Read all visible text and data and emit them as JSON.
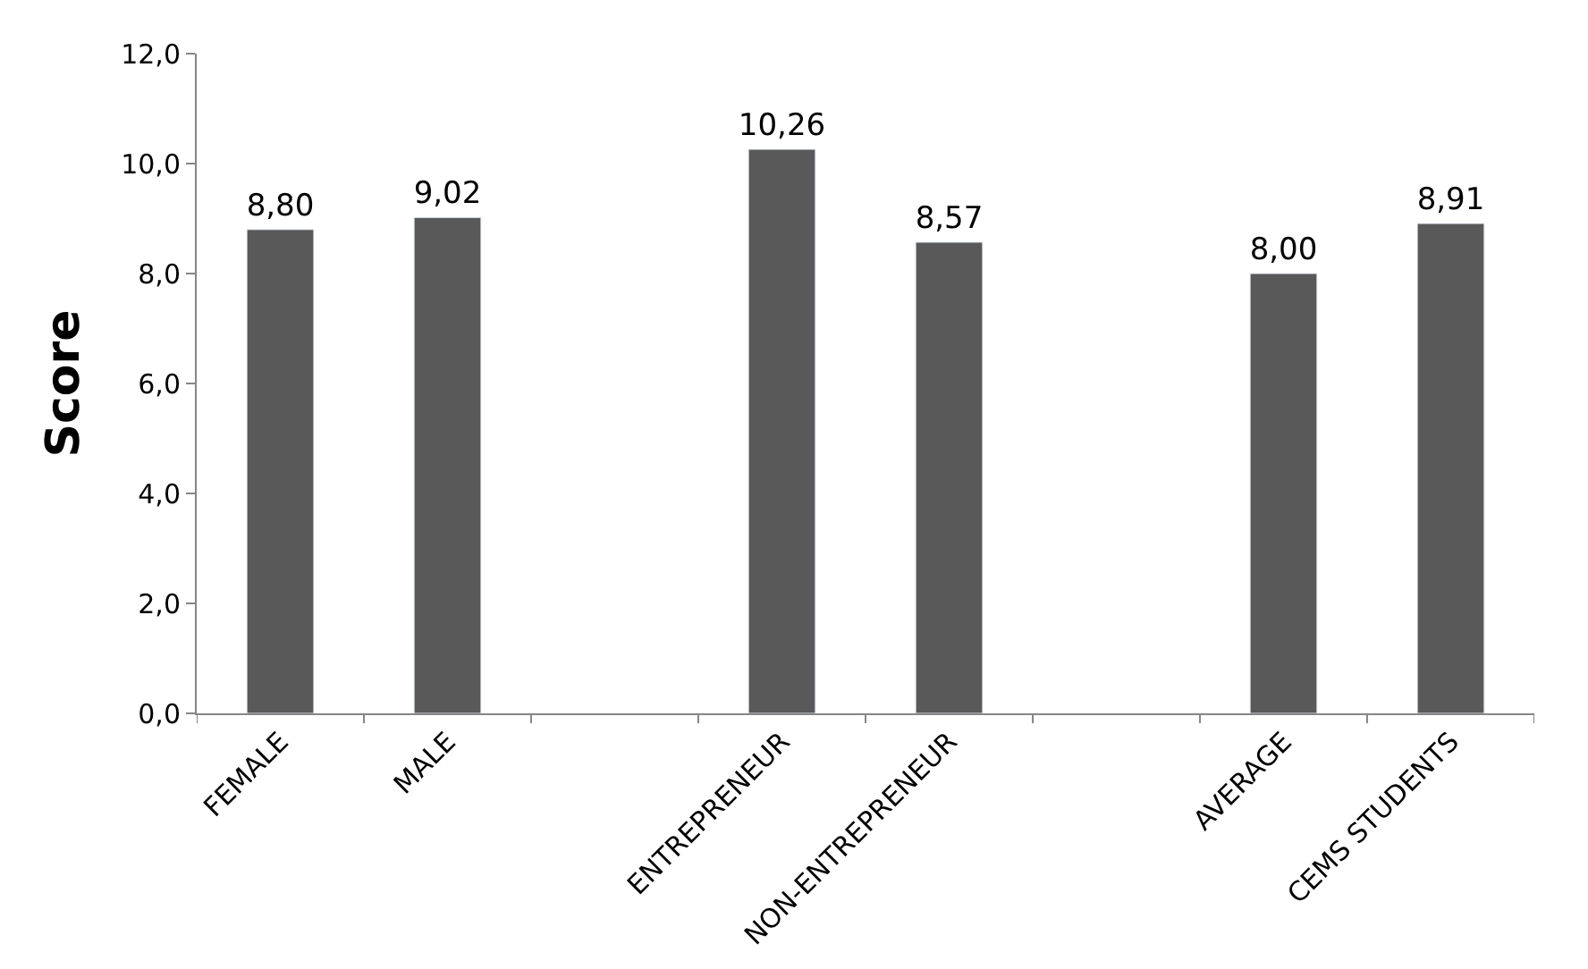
{
  "chart_data": {
    "type": "bar",
    "ylabel": "Score",
    "categories": [
      "FEMALE",
      "MALE",
      null,
      "ENTREPRENEUR",
      "NON-ENTREPRENEUR",
      null,
      "AVERAGE",
      "CEMS STUDENTS"
    ],
    "values": [
      8.8,
      9.02,
      null,
      10.26,
      8.57,
      null,
      8.0,
      8.91
    ],
    "value_labels": [
      "8,80",
      "9,02",
      null,
      "10,26",
      "8,57",
      null,
      "8,00",
      "8,91"
    ],
    "color": "#595959",
    "ylim": [
      0,
      12
    ],
    "yticks": [
      {
        "value": 0,
        "label": "0,0"
      },
      {
        "value": 2,
        "label": "2,0"
      },
      {
        "value": 4,
        "label": "4,0"
      },
      {
        "value": 6,
        "label": "6,0"
      },
      {
        "value": 8,
        "label": "8,0"
      },
      {
        "value": 10,
        "label": "10,0"
      },
      {
        "value": 12,
        "label": "12,0"
      }
    ],
    "legend": false
  }
}
